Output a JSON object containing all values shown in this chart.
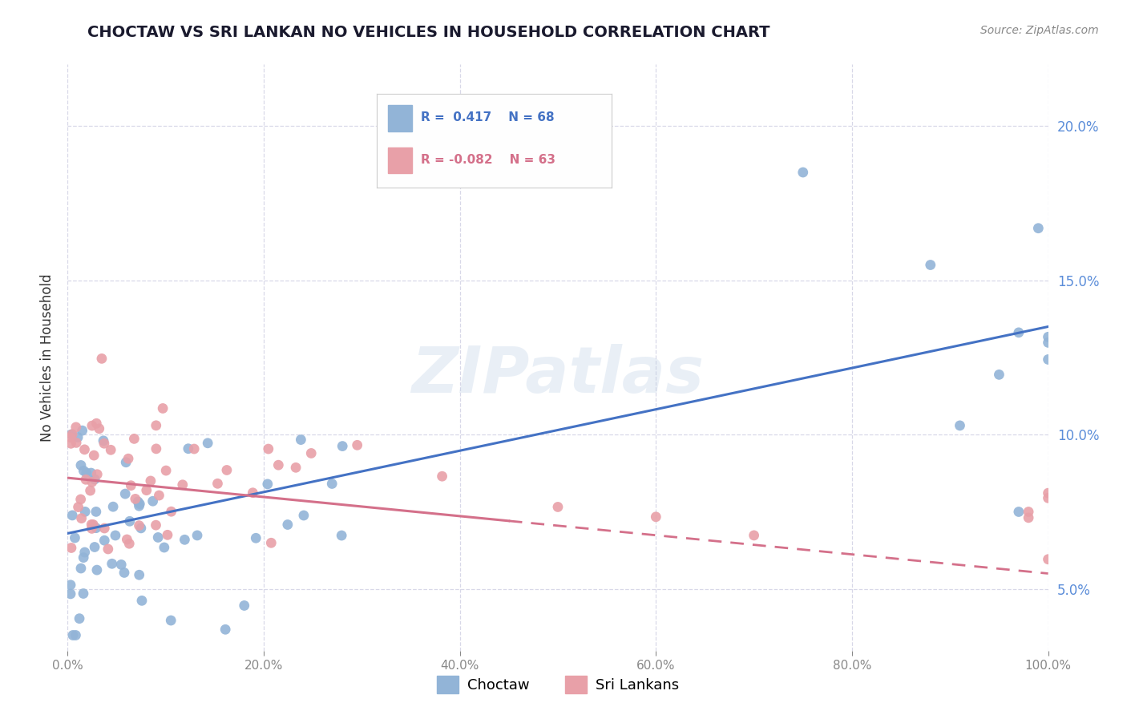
{
  "title": "CHOCTAW VS SRI LANKAN NO VEHICLES IN HOUSEHOLD CORRELATION CHART",
  "source": "Source: ZipAtlas.com",
  "ylabel": "No Vehicles in Household",
  "xlim": [
    0,
    100
  ],
  "ylim": [
    3.0,
    22.0
  ],
  "xtick_values": [
    0,
    20,
    40,
    60,
    80,
    100
  ],
  "ytick_values": [
    5,
    10,
    15,
    20
  ],
  "choctaw_color": "#92b4d7",
  "srilankans_color": "#e8a0a8",
  "choctaw_R": 0.417,
  "choctaw_N": 68,
  "srilankans_R": -0.082,
  "srilankans_N": 63,
  "watermark": "ZIPatlas",
  "background_color": "#ffffff",
  "grid_color": "#d8d8e8",
  "choctaw_line_color": "#4472c4",
  "srilankans_line_color": "#d4708a",
  "title_color": "#1a1a2e",
  "source_color": "#888888",
  "tick_color": "#5b8dd9",
  "legend_label_choctaw": "Choctaw",
  "legend_label_sri": "Sri Lankans",
  "choctaw_line_start_y": 6.8,
  "choctaw_line_end_y": 13.5,
  "srilankans_line_start_y": 8.6,
  "srilankans_line_end_y": 5.5,
  "srilankans_solid_end_x": 45
}
